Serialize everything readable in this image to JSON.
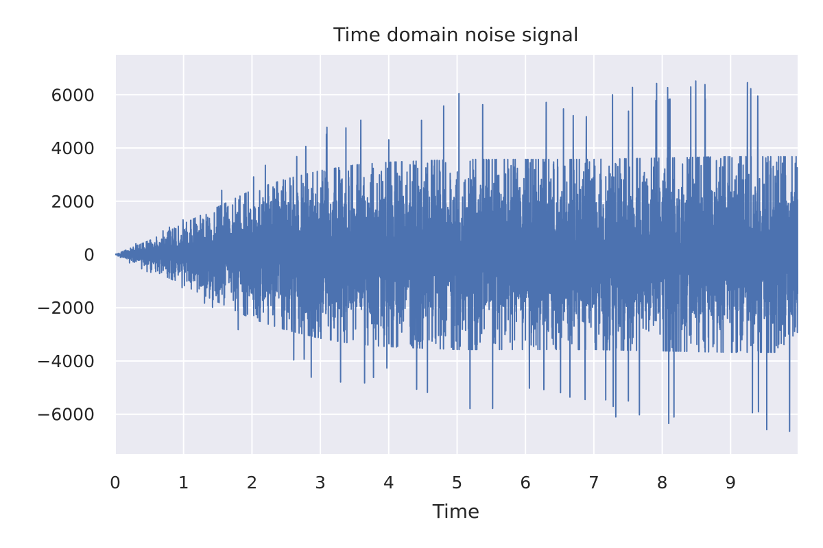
{
  "chart_data": {
    "type": "line",
    "title": "Time domain noise signal",
    "xlabel": "Time",
    "ylabel": "",
    "xlim": [
      0,
      9.98
    ],
    "ylim": [
      -7500,
      7500
    ],
    "x_ticks": [
      0,
      1,
      2,
      3,
      4,
      5,
      6,
      7,
      8,
      9
    ],
    "x_tick_labels": [
      "0",
      "1",
      "2",
      "3",
      "4",
      "5",
      "6",
      "7",
      "8",
      "9"
    ],
    "y_ticks": [
      -6000,
      -4000,
      -2000,
      0,
      2000,
      4000,
      6000
    ],
    "y_tick_labels": [
      "−6000",
      "−4000",
      "−2000",
      "0",
      "2000",
      "4000",
      "6000"
    ],
    "grid": true,
    "series": [
      {
        "color": "#4c72b0",
        "envelope": {
          "x": [
            0,
            0.5,
            1,
            1.5,
            2,
            2.5,
            3,
            3.5,
            4,
            5,
            6,
            7,
            8,
            9,
            9.98
          ],
          "typical_amplitude": [
            0,
            500,
            1100,
            1700,
            2300,
            2700,
            3000,
            3200,
            3300,
            3400,
            3400,
            3400,
            3450,
            3500,
            3500
          ],
          "peak_amplitude": [
            0,
            750,
            1450,
            2350,
            3400,
            3700,
            5100,
            5400,
            4900,
            6300,
            5800,
            6000,
            6600,
            6800,
            6700
          ]
        }
      }
    ],
    "colors": {
      "background": "#eaeaf2",
      "grid": "#ffffff",
      "line": "#4c72b0"
    }
  }
}
